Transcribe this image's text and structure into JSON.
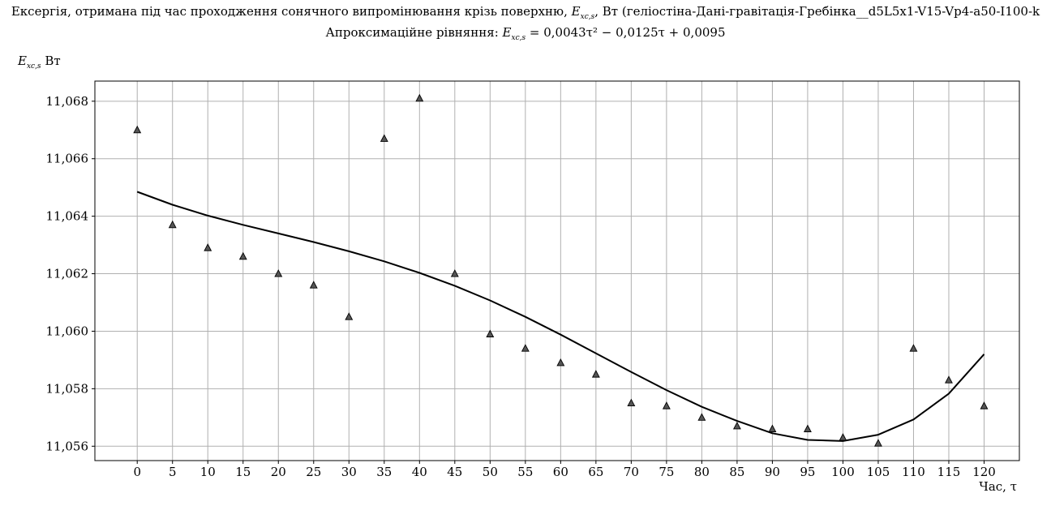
{
  "chart_data": {
    "type": "scatter",
    "title": "Ексергія, отримана під час проходження сонячного випромінювання крізь поверхню, E_xc,s, Вт (геліостіна-Дані-гравітація-Гребінка__d5L5x1-V15-Vp4-a50-I100-k",
    "title_prefix": "Ексергія, отримана під час проходження сонячного випромінювання крізь поверхню,",
    "title_symbol": "E",
    "title_symbol_sub": "xc,s",
    "title_suffix": ", Вт (геліостіна-Дані-гравітація-Гребінка__d5L5x1-V15-Vp4-a50-I100-k",
    "subtitle_prefix": "Апроксимаційне рівняння:",
    "subtitle_symbol": "E",
    "subtitle_symbol_sub": "xc,s",
    "subtitle_equation": "= 0,0043τ² − 0,0125τ + 0,0095",
    "ylabel_symbol": "E",
    "ylabel_sub": "xc,s",
    "ylabel_unit": "Вт",
    "xlabel": "Час, τ",
    "xlim": [
      -6,
      125
    ],
    "ylim": [
      11.0555,
      11.0687
    ],
    "x_ticks": [
      0,
      5,
      10,
      15,
      20,
      25,
      30,
      35,
      40,
      45,
      50,
      55,
      60,
      65,
      70,
      75,
      80,
      85,
      90,
      95,
      100,
      105,
      110,
      115,
      120
    ],
    "y_ticks": [
      11.056,
      11.058,
      11.06,
      11.062,
      11.064,
      11.066,
      11.068
    ],
    "y_tick_labels": [
      "11,056",
      "11,058",
      "11,060",
      "11,062",
      "11,064",
      "11,066",
      "11,068"
    ],
    "grid": true,
    "series": [
      {
        "kind": "scatter",
        "marker": "triangle",
        "color": "#555555",
        "x": [
          0,
          5,
          10,
          15,
          20,
          25,
          30,
          35,
          40,
          45,
          50,
          55,
          60,
          65,
          70,
          75,
          80,
          85,
          90,
          95,
          100,
          105,
          110,
          115,
          120
        ],
        "y": [
          11.067,
          11.0637,
          11.0629,
          11.0626,
          11.062,
          11.0616,
          11.0605,
          11.0667,
          11.0681,
          11.062,
          11.0599,
          11.0594,
          11.0589,
          11.0585,
          11.0575,
          11.0574,
          11.057,
          11.0567,
          11.0566,
          11.0566,
          11.0563,
          11.0561,
          11.0594,
          11.0583,
          11.0574
        ]
      },
      {
        "kind": "line",
        "color": "#000000",
        "x": [
          0,
          5,
          10,
          15,
          20,
          25,
          30,
          35,
          40,
          45,
          50,
          55,
          60,
          65,
          70,
          75,
          80,
          85,
          90,
          95,
          100,
          105,
          110,
          115,
          120
        ],
        "y": [
          11.06485,
          11.0644,
          11.06402,
          11.0637,
          11.0634,
          11.0631,
          11.06278,
          11.06243,
          11.06203,
          11.06158,
          11.06107,
          11.0605,
          11.05988,
          11.05923,
          11.05858,
          11.05795,
          11.05737,
          11.05688,
          11.05645,
          11.05622,
          11.05618,
          11.0564,
          11.05693,
          11.05783,
          11.0592
        ]
      }
    ]
  }
}
